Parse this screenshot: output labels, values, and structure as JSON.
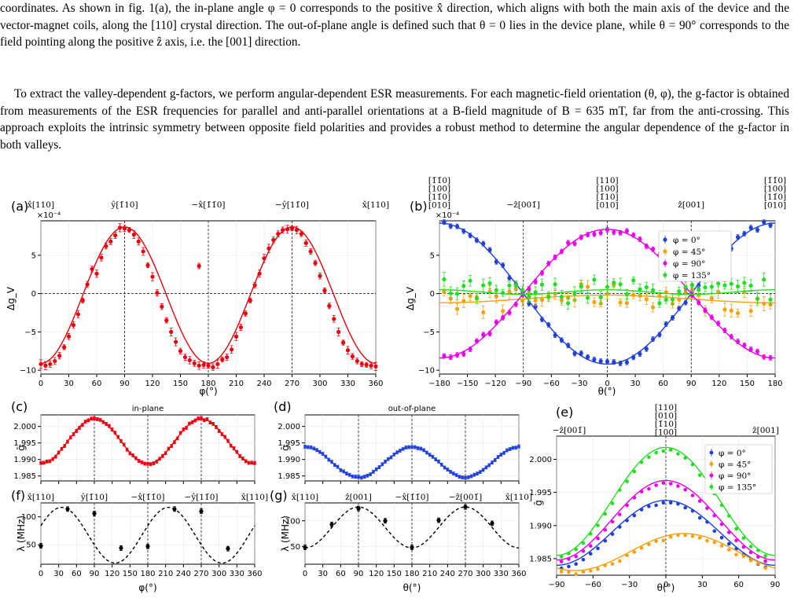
{
  "text": {
    "p1": "coordinates. As shown in fig. 1(a), the in-plane angle φ = 0 corresponds to the positive x̂ direction, which aligns with both the main axis of the device and the vector-magnet coils, along the [110] crystal direction. The out-of-plane angle is defined such that θ = 0 lies in the device plane, while θ = 90° corresponds to the field pointing along the positive ẑ axis, i.e. the [001] direction.",
    "p2": "To extract the valley-dependent g-factors, we perform angular-dependent ESR measurements. For each magnetic-field orientation (θ, φ), the g-factor is obtained from measurements of the ESR frequencies for parallel and anti-parallel orientations at a B-field magnitude of B = 635 mT, far from the anti-crossing. This approach exploits the intrinsic symmetry between opposite field polarities and provides a robust method to determine the angular dependence of the g-factor in both valleys."
  },
  "chart_data": [
    {
      "panel": "(a)",
      "type": "scatter",
      "xlabel": "φ(°)",
      "ylabel": "Δg_V",
      "exponent": "×10⁻⁴",
      "xlim": [
        0,
        360
      ],
      "ylim": [
        -10.5,
        9.5
      ],
      "xticks": [
        0,
        30,
        60,
        90,
        120,
        150,
        180,
        210,
        240,
        270,
        300,
        330,
        360
      ],
      "yticks": [
        -10,
        -5,
        0,
        5
      ],
      "top_labels": [
        {
          "x": 0,
          "text": "x̂[110]"
        },
        {
          "x": 90,
          "text": "ŷ[1̄10]"
        },
        {
          "x": 180,
          "text": "−x̂[1̄1̄0]"
        },
        {
          "x": 270,
          "text": "−ŷ[11̄0]"
        },
        {
          "x": 360,
          "text": "x̂[110]"
        }
      ],
      "vlines": [
        90,
        180,
        270
      ],
      "series": [
        {
          "name": "",
          "color": "#e8000b",
          "fit": "cos",
          "amp": 8.9,
          "period": 180,
          "phase": 90,
          "offset": -0.3,
          "points": [
            [
              0,
              -9.2
            ],
            [
              5,
              -9.4
            ],
            [
              10,
              -9.2
            ],
            [
              15,
              -8.8
            ],
            [
              20,
              -8.1
            ],
            [
              25,
              -7.0
            ],
            [
              30,
              -5.6
            ],
            [
              35,
              -4.1
            ],
            [
              40,
              -2.7
            ],
            [
              45,
              -0.9
            ],
            [
              50,
              1.2
            ],
            [
              55,
              3.2
            ],
            [
              60,
              2.6
            ],
            [
              65,
              4.7
            ],
            [
              70,
              6.2
            ],
            [
              75,
              6.8
            ],
            [
              80,
              7.6
            ],
            [
              85,
              8.6
            ],
            [
              90,
              8.5
            ],
            [
              95,
              8.3
            ],
            [
              100,
              7.7
            ],
            [
              105,
              6.8
            ],
            [
              110,
              5.5
            ],
            [
              115,
              3.7
            ],
            [
              120,
              2.2
            ],
            [
              125,
              0.1
            ],
            [
              130,
              -1.7
            ],
            [
              135,
              -3.5
            ],
            [
              140,
              -5.0
            ],
            [
              145,
              -6.3
            ],
            [
              150,
              -7.5
            ],
            [
              155,
              -8.3
            ],
            [
              160,
              -8.7
            ],
            [
              165,
              -9.1
            ],
            [
              170,
              -9.4
            ],
            [
              175,
              -9.3
            ],
            [
              180,
              -9.4
            ],
            [
              185,
              -9.6
            ],
            [
              190,
              -9.2
            ],
            [
              195,
              -8.6
            ],
            [
              200,
              -8.3
            ],
            [
              205,
              -7.3
            ],
            [
              210,
              -5.6
            ],
            [
              215,
              -4.4
            ],
            [
              220,
              -2.6
            ],
            [
              225,
              -0.9
            ],
            [
              230,
              1.1
            ],
            [
              235,
              2.6
            ],
            [
              240,
              4.6
            ],
            [
              245,
              5.9
            ],
            [
              250,
              7.0
            ],
            [
              255,
              7.8
            ],
            [
              260,
              8.3
            ],
            [
              265,
              8.4
            ],
            [
              270,
              8.5
            ],
            [
              275,
              8.3
            ],
            [
              280,
              7.8
            ],
            [
              285,
              6.6
            ],
            [
              290,
              5.5
            ],
            [
              295,
              4.0
            ],
            [
              300,
              2.3
            ],
            [
              305,
              0.4
            ],
            [
              310,
              -1.6
            ],
            [
              315,
              -3.3
            ],
            [
              320,
              -5.0
            ],
            [
              325,
              -6.4
            ],
            [
              330,
              -7.4
            ],
            [
              335,
              -8.2
            ],
            [
              340,
              -8.8
            ],
            [
              345,
              -9.2
            ],
            [
              350,
              -9.3
            ],
            [
              355,
              -9.4
            ],
            [
              360,
              -9.5
            ],
            [
              170,
              3.6
            ]
          ]
        }
      ]
    },
    {
      "panel": "(b)",
      "type": "scatter",
      "xlabel": "θ(°)",
      "ylabel": "Δg_V",
      "exponent": "×10⁻⁴",
      "xlim": [
        -180,
        180
      ],
      "ylim": [
        -10.5,
        9.5
      ],
      "xticks": [
        -180,
        -150,
        -120,
        -90,
        -60,
        -30,
        0,
        30,
        60,
        90,
        120,
        150,
        180
      ],
      "yticks": [
        -10,
        -5,
        0,
        5
      ],
      "top_labels": [
        {
          "x": -90,
          "text": "−ẑ[001̄]"
        },
        {
          "x": 90,
          "text": "ẑ[001]"
        }
      ],
      "stacked_labels": [
        {
          "x": -180,
          "lines": [
            "[1̄1̄0]",
            "[100]",
            "[11̄0]",
            "[010]"
          ]
        },
        {
          "x": 0,
          "lines": [
            "[110]",
            "[100]",
            "[1̄10]",
            "[010]"
          ]
        },
        {
          "x": 180,
          "lines": [
            "[1̄1̄0]",
            "[100]",
            "[11̄0]",
            "[010]"
          ]
        }
      ],
      "vlines": [
        -90,
        0,
        90
      ],
      "legend": "top-right",
      "series": [
        {
          "name": "φ = 0°",
          "color": "#1f3fd6",
          "fit": "neg",
          "amp": 9.2
        },
        {
          "name": "φ = 45°",
          "color": "#f5a00c",
          "fit": "flat",
          "amp": -1.0
        },
        {
          "name": "φ = 90°",
          "color": "#e800e8",
          "fit": "pos",
          "amp": 8.4
        },
        {
          "name": "φ = 135°",
          "color": "#22dd22",
          "fit": "flat",
          "amp": 0.4
        }
      ]
    },
    {
      "panel": "(c)",
      "title": "in-plane",
      "type": "scatter",
      "ylabel": "ḡ",
      "xlim": [
        0,
        360
      ],
      "ylim": [
        1.9835,
        2.0035
      ],
      "yticks": [
        1.985,
        1.99,
        1.995,
        2.0
      ],
      "vlines": [
        90,
        180,
        270
      ],
      "color": "#e8000b"
    },
    {
      "panel": "(d)",
      "title": "out-of-plane",
      "type": "scatter",
      "ylabel": "ḡ",
      "xlim": [
        -180,
        180
      ],
      "ylim": [
        1.9835,
        2.0035
      ],
      "yticks": [
        1.985,
        1.99,
        1.995,
        2.0
      ],
      "vlines": [
        -90,
        0,
        90
      ],
      "color": "#1f3fd6"
    },
    {
      "panel": "(e)",
      "type": "scatter",
      "xlabel": "θ(°)",
      "ylabel": "ḡ",
      "xlim": [
        -90,
        90
      ],
      "ylim": [
        1.9825,
        2.0035
      ],
      "xticks": [
        -90,
        -60,
        -30,
        0,
        30,
        60,
        90
      ],
      "yticks": [
        1.985,
        1.99,
        1.995,
        2.0
      ],
      "top_labels": [
        {
          "x": -90,
          "text": "−ẑ[001̄]"
        },
        {
          "x": 90,
          "text": "ẑ[001]"
        }
      ],
      "stacked_labels": [
        {
          "x": 0,
          "lines": [
            "[110]",
            "[010]",
            "[1̄10]",
            "[100]"
          ]
        }
      ],
      "legend": "top-right",
      "series": [
        {
          "name": "φ = 0°",
          "color": "#1f3fd6",
          "peak": 1.9938,
          "base": 1.984
        },
        {
          "name": "φ = 45°",
          "color": "#f5a00c",
          "peak": 1.9888,
          "base": 1.9832
        },
        {
          "name": "φ = 90°",
          "color": "#e800e8",
          "peak": 1.9968,
          "base": 1.9848
        },
        {
          "name": "φ = 135°",
          "color": "#22dd22",
          "peak": 2.0018,
          "base": 1.9855
        }
      ]
    },
    {
      "panel": "(f)",
      "type": "scatter",
      "xlabel": "φ(°)",
      "ylabel": "λ (MHz)",
      "xlim": [
        0,
        360
      ],
      "ylim": [
        15,
        125
      ],
      "yticks": [
        50,
        100
      ],
      "xticks": [
        0,
        30,
        60,
        90,
        120,
        150,
        180,
        210,
        240,
        270,
        300,
        330,
        360
      ],
      "top_labels": [
        {
          "x": 0,
          "text": "x̂[110]"
        },
        {
          "x": 90,
          "text": "ŷ[1̄10]"
        },
        {
          "x": 180,
          "text": "−x̂[1̄1̄0]"
        },
        {
          "x": 270,
          "text": "−ŷ[11̄0]"
        },
        {
          "x": 360,
          "text": "x̂[110]"
        }
      ],
      "vlines": [
        90,
        180,
        270
      ],
      "points": [
        [
          0,
          48
        ],
        [
          45,
          114
        ],
        [
          90,
          106
        ],
        [
          135,
          44
        ],
        [
          180,
          47
        ],
        [
          225,
          114
        ],
        [
          270,
          110
        ],
        [
          315,
          43
        ]
      ]
    },
    {
      "panel": "(g)",
      "type": "scatter",
      "xlabel": "θ(°)",
      "ylabel": "λ (MHz)",
      "xlim": [
        0,
        360
      ],
      "ylim": [
        15,
        135
      ],
      "yticks": [
        50,
        100
      ],
      "xticks": [
        0,
        30,
        60,
        90,
        120,
        150,
        180,
        210,
        240,
        270,
        300,
        330,
        360
      ],
      "top_labels": [
        {
          "x": 0,
          "text": "x̂[110]"
        },
        {
          "x": 90,
          "text": "ẑ[001]"
        },
        {
          "x": 180,
          "text": "−x̂[1̄1̄0]"
        },
        {
          "x": 270,
          "text": "−ẑ[001̄]"
        },
        {
          "x": 360,
          "text": "x̂[110]"
        }
      ],
      "vlines": [
        90,
        180,
        270
      ],
      "points": [
        [
          0,
          48
        ],
        [
          45,
          93
        ],
        [
          90,
          124
        ],
        [
          135,
          100
        ],
        [
          180,
          48
        ],
        [
          225,
          101
        ],
        [
          270,
          127
        ],
        [
          315,
          95
        ]
      ]
    }
  ]
}
